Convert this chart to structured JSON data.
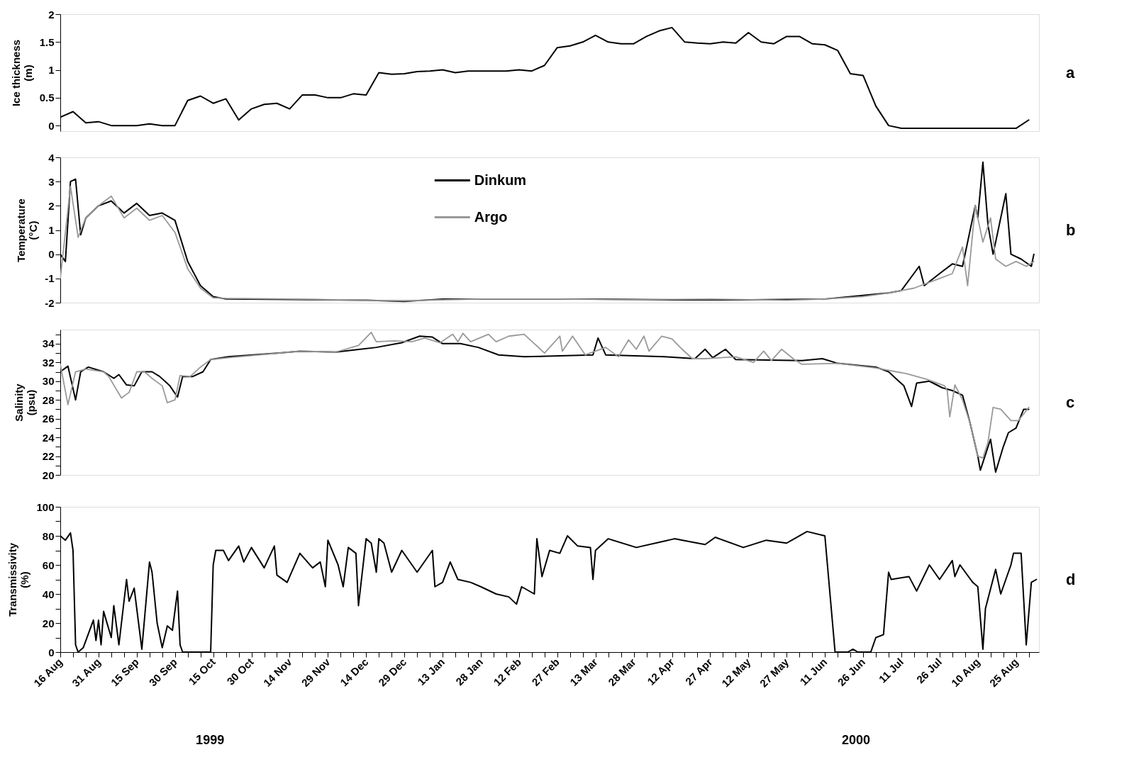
{
  "chart_data": [
    {
      "type": "line",
      "ylabel": "Ice thickness\n(m)",
      "annotations": [
        "a"
      ],
      "tick_labels": "y",
      "grid": false,
      "xlim": [
        "1999-08-16",
        "2000-09-03"
      ],
      "ylim": [
        -0.1,
        2
      ],
      "yticks": [
        0,
        0.5,
        1,
        1.5,
        2
      ],
      "x": [
        "1999-08-16",
        "1999-08-21",
        "1999-08-26",
        "1999-08-31",
        "1999-09-05",
        "1999-09-10",
        "1999-09-15",
        "1999-09-20",
        "1999-09-25",
        "1999-09-30",
        "1999-10-05",
        "1999-10-10",
        "1999-10-15",
        "1999-10-20",
        "1999-10-25",
        "1999-10-30",
        "1999-11-04",
        "1999-11-09",
        "1999-11-14",
        "1999-11-19",
        "1999-11-24",
        "1999-11-29",
        "1999-12-04",
        "1999-12-09",
        "1999-12-14",
        "1999-12-19",
        "1999-12-24",
        "1999-12-29",
        "2000-01-03",
        "2000-01-08",
        "2000-01-13",
        "2000-01-18",
        "2000-01-23",
        "2000-01-28",
        "2000-02-02",
        "2000-02-07",
        "2000-02-12",
        "2000-02-17",
        "2000-02-22",
        "2000-02-27",
        "2000-03-03",
        "2000-03-08",
        "2000-03-13",
        "2000-03-18",
        "2000-03-23",
        "2000-03-28",
        "2000-04-02",
        "2000-04-07",
        "2000-04-12",
        "2000-04-17",
        "2000-04-22",
        "2000-04-27",
        "2000-05-02",
        "2000-05-07",
        "2000-05-12",
        "2000-05-17",
        "2000-05-22",
        "2000-05-27",
        "2000-06-01",
        "2000-06-06",
        "2000-06-11",
        "2000-06-16",
        "2000-06-21",
        "2000-06-26",
        "2000-07-01",
        "2000-07-06",
        "2000-07-11",
        "2000-07-16",
        "2000-07-21",
        "2000-07-26",
        "2000-07-31",
        "2000-08-05",
        "2000-08-10",
        "2000-08-15",
        "2000-08-20",
        "2000-08-25",
        "2000-08-30"
      ],
      "series": [
        {
          "color": "#000000",
          "values": [
            0.15,
            0.25,
            0.05,
            0.07,
            0,
            0,
            0,
            0.03,
            0,
            0,
            0.45,
            0.53,
            0.4,
            0.48,
            0.1,
            0.3,
            0.38,
            0.4,
            0.3,
            0.55,
            0.55,
            0.5,
            0.5,
            0.57,
            0.55,
            0.95,
            0.92,
            0.93,
            0.97,
            0.98,
            1.0,
            0.95,
            0.98,
            0.98,
            0.98,
            0.98,
            1.0,
            0.98,
            1.08,
            1.4,
            1.43,
            1.5,
            1.62,
            1.5,
            1.47,
            1.47,
            1.6,
            1.7,
            1.76,
            1.5,
            1.48,
            1.47,
            1.5,
            1.48,
            1.67,
            1.5,
            1.47,
            1.6,
            1.6,
            1.47,
            1.45,
            1.35,
            0.93,
            0.9,
            0.35,
            0,
            -0.05,
            -0.05,
            -0.05,
            -0.05,
            -0.05,
            -0.05,
            -0.05,
            -0.05,
            -0.05,
            -0.05,
            0.1
          ]
        }
      ]
    },
    {
      "type": "line",
      "ylabel": "Temperature\n(°C)",
      "annotations": [
        "b"
      ],
      "tick_labels": "y",
      "grid": false,
      "legend": "top",
      "xlim": [
        "1999-08-16",
        "2000-09-03"
      ],
      "ylim": [
        -2,
        4
      ],
      "yticks": [
        -2,
        -1,
        0,
        1,
        2,
        3,
        4
      ],
      "series": [
        {
          "name": "Dinkum",
          "color": "#000000",
          "x": [
            "1999-08-16",
            "1999-08-18",
            "1999-08-20",
            "1999-08-22",
            "1999-08-24",
            "1999-08-26",
            "1999-08-31",
            "1999-09-05",
            "1999-09-10",
            "1999-09-15",
            "1999-09-20",
            "1999-09-25",
            "1999-09-30",
            "1999-10-05",
            "1999-10-10",
            "1999-10-15",
            "1999-10-20",
            "1999-11-14",
            "1999-12-14",
            "1999-12-29",
            "2000-01-13",
            "2000-02-12",
            "2000-03-13",
            "2000-04-12",
            "2000-05-12",
            "2000-06-11",
            "2000-06-26",
            "2000-07-06",
            "2000-07-11",
            "2000-07-18",
            "2000-07-20",
            "2000-07-26",
            "2000-07-31",
            "2000-08-04",
            "2000-08-09",
            "2000-08-10",
            "2000-08-12",
            "2000-08-14",
            "2000-08-16",
            "2000-08-21",
            "2000-08-23",
            "2000-08-27",
            "2000-08-31",
            "2000-09-01"
          ],
          "values": [
            0,
            -0.3,
            3.0,
            3.1,
            0.8,
            1.5,
            2.0,
            2.2,
            1.7,
            2.1,
            1.6,
            1.7,
            1.4,
            -0.3,
            -1.3,
            -1.75,
            -1.85,
            -1.87,
            -1.9,
            -1.95,
            -1.85,
            -1.85,
            -1.85,
            -1.88,
            -1.88,
            -1.85,
            -1.7,
            -1.6,
            -1.5,
            -0.5,
            -1.3,
            -0.8,
            -0.4,
            -0.5,
            2.0,
            1.5,
            3.8,
            1.2,
            0.0,
            2.5,
            0.0,
            -0.2,
            -0.5,
            0.0
          ]
        },
        {
          "name": "Argo",
          "color": "#999999",
          "x": [
            "1999-08-16",
            "1999-08-20",
            "1999-08-23",
            "1999-08-26",
            "1999-08-31",
            "1999-09-05",
            "1999-09-10",
            "1999-09-15",
            "1999-09-20",
            "1999-09-25",
            "1999-09-30",
            "1999-10-05",
            "1999-10-10",
            "1999-10-15",
            "1999-10-20",
            "1999-11-14",
            "1999-12-14",
            "1999-12-29",
            "2000-01-28",
            "2000-02-27",
            "2000-03-28",
            "2000-04-27",
            "2000-05-27",
            "2000-06-11",
            "2000-06-26",
            "2000-07-06",
            "2000-07-16",
            "2000-07-26",
            "2000-07-31",
            "2000-08-04",
            "2000-08-06",
            "2000-08-09",
            "2000-08-12",
            "2000-08-15",
            "2000-08-17",
            "2000-08-21",
            "2000-08-25",
            "2000-08-29",
            "2000-09-01"
          ],
          "values": [
            -1.0,
            2.8,
            0.7,
            1.5,
            2.0,
            2.4,
            1.5,
            1.9,
            1.4,
            1.6,
            0.9,
            -0.6,
            -1.4,
            -1.8,
            -1.82,
            -1.85,
            -1.9,
            -1.92,
            -1.85,
            -1.85,
            -1.88,
            -1.85,
            -1.9,
            -1.85,
            -1.75,
            -1.6,
            -1.4,
            -1.0,
            -0.8,
            0.3,
            -1.3,
            2.0,
            0.5,
            1.5,
            -0.2,
            -0.5,
            -0.3,
            -0.5,
            -0.3
          ]
        }
      ]
    },
    {
      "type": "line",
      "ylabel": "Salinity\n(psu)",
      "annotations": [
        "c"
      ],
      "tick_labels": "y",
      "grid": false,
      "xlim": [
        "1999-08-16",
        "2000-09-03"
      ],
      "ylim": [
        20,
        35.5
      ],
      "yticks": [
        20,
        {
          "value": 21,
          "label": null
        },
        22,
        {
          "value": 23,
          "label": null
        },
        24,
        {
          "value": 25,
          "label": null
        },
        26,
        {
          "value": 27,
          "label": null
        },
        28,
        {
          "value": 29,
          "label": null
        },
        30,
        {
          "value": 31,
          "label": null
        },
        32,
        {
          "value": 33,
          "label": null
        },
        34,
        {
          "value": 35,
          "label": null
        }
      ],
      "series": [
        {
          "color": "#000000",
          "x": [
            "1999-08-16",
            "1999-08-19",
            "1999-08-22",
            "1999-08-24",
            "1999-08-27",
            "1999-09-02",
            "1999-09-06",
            "1999-09-08",
            "1999-09-11",
            "1999-09-14",
            "1999-09-17",
            "1999-09-21",
            "1999-09-24",
            "1999-09-28",
            "1999-10-01",
            "1999-10-03",
            "1999-10-07",
            "1999-10-11",
            "1999-10-14",
            "1999-10-21",
            "1999-11-10",
            "1999-11-18",
            "1999-12-02",
            "1999-12-18",
            "1999-12-28",
            "2000-01-04",
            "2000-01-09",
            "2000-01-13",
            "2000-01-20",
            "2000-01-27",
            "2000-02-04",
            "2000-02-14",
            "2000-03-12",
            "2000-03-14",
            "2000-03-17",
            "2000-04-09",
            "2000-04-21",
            "2000-04-25",
            "2000-04-28",
            "2000-05-03",
            "2000-05-07",
            "2000-06-02",
            "2000-06-10",
            "2000-06-16",
            "2000-07-01",
            "2000-07-06",
            "2000-07-12",
            "2000-07-15",
            "2000-07-17",
            "2000-07-22",
            "2000-07-27",
            "2000-07-31",
            "2000-08-04",
            "2000-08-07",
            "2000-08-10",
            "2000-08-11",
            "2000-08-14",
            "2000-08-15",
            "2000-08-17",
            "2000-08-20",
            "2000-08-22",
            "2000-08-25",
            "2000-08-28",
            "2000-08-30"
          ],
          "values": [
            31.0,
            31.6,
            28.0,
            31.0,
            31.5,
            31.0,
            30.3,
            30.7,
            29.6,
            29.5,
            31.0,
            31.0,
            30.5,
            29.5,
            28.3,
            30.5,
            30.5,
            31.0,
            32.3,
            32.6,
            33.0,
            33.2,
            33.1,
            33.6,
            34.1,
            34.8,
            34.7,
            34.0,
            34.0,
            33.6,
            32.8,
            32.6,
            32.8,
            34.6,
            32.8,
            32.6,
            32.4,
            33.4,
            32.5,
            33.4,
            32.3,
            32.2,
            32.4,
            31.9,
            31.5,
            31.0,
            29.5,
            27.3,
            29.8,
            30.0,
            29.3,
            29.0,
            28.5,
            25.5,
            22.0,
            20.5,
            23.0,
            23.8,
            20.3,
            23.0,
            24.5,
            25.0,
            27.0,
            27.0
          ]
        },
        {
          "color": "#999999",
          "x": [
            "1999-08-16",
            "1999-08-19",
            "1999-08-22",
            "1999-08-26",
            "1999-09-02",
            "1999-09-04",
            "1999-09-09",
            "1999-09-12",
            "1999-09-15",
            "1999-09-18",
            "1999-09-21",
            "1999-09-25",
            "1999-09-27",
            "1999-09-30",
            "1999-10-02",
            "1999-10-06",
            "1999-10-10",
            "1999-10-14",
            "1999-10-21",
            "1999-11-10",
            "1999-11-18",
            "1999-12-02",
            "1999-12-11",
            "1999-12-16",
            "1999-12-18",
            "1999-12-25",
            "2000-01-01",
            "2000-01-06",
            "2000-01-12",
            "2000-01-17",
            "2000-01-19",
            "2000-01-21",
            "2000-01-24",
            "2000-01-31",
            "2000-02-03",
            "2000-02-08",
            "2000-02-14",
            "2000-02-18",
            "2000-02-22",
            "2000-02-28",
            "2000-02-29",
            "2000-03-04",
            "2000-03-09",
            "2000-03-17",
            "2000-03-22",
            "2000-03-26",
            "2000-03-29",
            "2000-04-01",
            "2000-04-03",
            "2000-04-08",
            "2000-04-12",
            "2000-04-16",
            "2000-04-20",
            "2000-04-25",
            "2000-05-07",
            "2000-05-14",
            "2000-05-18",
            "2000-05-21",
            "2000-05-25",
            "2000-05-30",
            "2000-06-02",
            "2000-06-16",
            "2000-07-01",
            "2000-07-13",
            "2000-07-21",
            "2000-07-28",
            "2000-07-29",
            "2000-07-30",
            "2000-08-01",
            "2000-08-04",
            "2000-08-07",
            "2000-08-10",
            "2000-08-12",
            "2000-08-14",
            "2000-08-16",
            "2000-08-19",
            "2000-08-23",
            "2000-08-26",
            "2000-08-30"
          ],
          "values": [
            31.8,
            27.5,
            31.0,
            31.3,
            31.0,
            30.5,
            28.2,
            28.8,
            31.0,
            31.0,
            30.3,
            29.5,
            27.7,
            28.0,
            30.6,
            30.5,
            31.5,
            32.3,
            32.5,
            33.0,
            33.2,
            33.1,
            33.8,
            35.2,
            34.2,
            34.3,
            34.2,
            34.6,
            34.1,
            35.0,
            34.2,
            35.1,
            34.2,
            35.0,
            34.2,
            34.8,
            35.0,
            34.0,
            33.0,
            34.8,
            33.2,
            34.8,
            32.8,
            33.6,
            32.6,
            34.4,
            33.4,
            34.8,
            33.2,
            34.8,
            34.5,
            33.4,
            32.4,
            32.4,
            32.6,
            32.0,
            33.2,
            32.2,
            33.4,
            32.3,
            31.8,
            31.9,
            31.4,
            30.8,
            30.2,
            29.5,
            29.0,
            26.2,
            29.6,
            28.0,
            25.5,
            22.0,
            21.8,
            23.5,
            27.2,
            27.0,
            25.8,
            25.8,
            27.2
          ]
        }
      ]
    },
    {
      "type": "line",
      "ylabel": "Transmissivity\n(%)",
      "grid": false,
      "annotations": [
        "d",
        "1999",
        "2000"
      ],
      "xlim": [
        "1999-08-16",
        "2000-09-03"
      ],
      "ylim": [
        0,
        100
      ],
      "yticks": [
        0,
        {
          "value": 10,
          "label": null
        },
        20,
        {
          "value": 30,
          "label": null
        },
        40,
        {
          "value": 50,
          "label": null
        },
        60,
        {
          "value": 70,
          "label": null
        },
        80,
        {
          "value": 90,
          "label": null
        },
        100
      ],
      "xticks": [
        {
          "value": "1999-08-16",
          "label": "16 Aug"
        },
        {
          "value": "1999-08-21",
          "label": null
        },
        {
          "value": "1999-08-26",
          "label": null
        },
        {
          "value": "1999-08-31",
          "label": "31 Aug"
        },
        {
          "value": "1999-09-05",
          "label": null
        },
        {
          "value": "1999-09-10",
          "label": null
        },
        {
          "value": "1999-09-15",
          "label": "15 Sep"
        },
        {
          "value": "1999-09-20",
          "label": null
        },
        {
          "value": "1999-09-25",
          "label": null
        },
        {
          "value": "1999-09-30",
          "label": "30 Sep"
        },
        {
          "value": "1999-10-05",
          "label": null
        },
        {
          "value": "1999-10-10",
          "label": null
        },
        {
          "value": "1999-10-15",
          "label": "15 Oct"
        },
        {
          "value": "1999-10-20",
          "label": null
        },
        {
          "value": "1999-10-25",
          "label": null
        },
        {
          "value": "1999-10-30",
          "label": "30 Oct"
        },
        {
          "value": "1999-11-04",
          "label": null
        },
        {
          "value": "1999-11-09",
          "label": null
        },
        {
          "value": "1999-11-14",
          "label": "14 Nov"
        },
        {
          "value": "1999-11-19",
          "label": null
        },
        {
          "value": "1999-11-24",
          "label": null
        },
        {
          "value": "1999-11-29",
          "label": "29 Nov"
        },
        {
          "value": "1999-12-04",
          "label": null
        },
        {
          "value": "1999-12-09",
          "label": null
        },
        {
          "value": "1999-12-14",
          "label": "14 Dec"
        },
        {
          "value": "1999-12-19",
          "label": null
        },
        {
          "value": "1999-12-24",
          "label": null
        },
        {
          "value": "1999-12-29",
          "label": "29 Dec"
        },
        {
          "value": "2000-01-03",
          "label": null
        },
        {
          "value": "2000-01-08",
          "label": null
        },
        {
          "value": "2000-01-13",
          "label": "13 Jan"
        },
        {
          "value": "2000-01-18",
          "label": null
        },
        {
          "value": "2000-01-23",
          "label": null
        },
        {
          "value": "2000-01-28",
          "label": "28 Jan"
        },
        {
          "value": "2000-02-02",
          "label": null
        },
        {
          "value": "2000-02-07",
          "label": null
        },
        {
          "value": "2000-02-12",
          "label": "12 Feb"
        },
        {
          "value": "2000-02-17",
          "label": null
        },
        {
          "value": "2000-02-22",
          "label": null
        },
        {
          "value": "2000-02-27",
          "label": "27 Feb"
        },
        {
          "value": "2000-03-03",
          "label": null
        },
        {
          "value": "2000-03-08",
          "label": null
        },
        {
          "value": "2000-03-13",
          "label": "13 Mar"
        },
        {
          "value": "2000-03-18",
          "label": null
        },
        {
          "value": "2000-03-23",
          "label": null
        },
        {
          "value": "2000-03-28",
          "label": "28 Mar"
        },
        {
          "value": "2000-04-02",
          "label": null
        },
        {
          "value": "2000-04-07",
          "label": null
        },
        {
          "value": "2000-04-12",
          "label": "12 Apr"
        },
        {
          "value": "2000-04-17",
          "label": null
        },
        {
          "value": "2000-04-22",
          "label": null
        },
        {
          "value": "2000-04-27",
          "label": "27 Apr"
        },
        {
          "value": "2000-05-02",
          "label": null
        },
        {
          "value": "2000-05-07",
          "label": null
        },
        {
          "value": "2000-05-12",
          "label": "12 May"
        },
        {
          "value": "2000-05-17",
          "label": null
        },
        {
          "value": "2000-05-22",
          "label": null
        },
        {
          "value": "2000-05-27",
          "label": "27 May"
        },
        {
          "value": "2000-06-01",
          "label": null
        },
        {
          "value": "2000-06-06",
          "label": null
        },
        {
          "value": "2000-06-11",
          "label": "11 Jun"
        },
        {
          "value": "2000-06-16",
          "label": null
        },
        {
          "value": "2000-06-21",
          "label": null
        },
        {
          "value": "2000-06-26",
          "label": "26 Jun"
        },
        {
          "value": "2000-07-01",
          "label": null
        },
        {
          "value": "2000-07-06",
          "label": null
        },
        {
          "value": "2000-07-11",
          "label": "11 Jul"
        },
        {
          "value": "2000-07-16",
          "label": null
        },
        {
          "value": "2000-07-21",
          "label": null
        },
        {
          "value": "2000-07-26",
          "label": "26 Jul"
        },
        {
          "value": "2000-07-31",
          "label": null
        },
        {
          "value": "2000-08-05",
          "label": null
        },
        {
          "value": "2000-08-10",
          "label": "10 Aug"
        },
        {
          "value": "2000-08-15",
          "label": null
        },
        {
          "value": "2000-08-20",
          "label": null
        },
        {
          "value": "2000-08-25",
          "label": "25 Aug"
        },
        {
          "value": "2000-08-30",
          "label": null
        }
      ],
      "x": [
        "1999-08-16",
        "1999-08-18",
        "1999-08-20",
        "1999-08-21",
        "1999-08-22",
        "1999-08-23",
        "1999-08-25",
        "1999-08-29",
        "1999-08-30",
        "1999-08-31",
        "1999-09-01",
        "1999-09-02",
        "1999-09-05",
        "1999-09-06",
        "1999-09-08",
        "1999-09-11",
        "1999-09-12",
        "1999-09-14",
        "1999-09-17",
        "1999-09-20",
        "1999-09-21",
        "1999-09-23",
        "1999-09-25",
        "1999-09-27",
        "1999-09-29",
        "1999-10-01",
        "1999-10-02",
        "1999-10-03",
        "1999-10-14",
        "1999-10-15",
        "1999-10-16",
        "1999-10-19",
        "1999-10-21",
        "1999-10-25",
        "1999-10-27",
        "1999-10-30",
        "1999-11-04",
        "1999-11-08",
        "1999-11-09",
        "1999-11-13",
        "1999-11-18",
        "1999-11-23",
        "1999-11-26",
        "1999-11-28",
        "1999-11-29",
        "1999-12-03",
        "1999-12-05",
        "1999-12-07",
        "1999-12-10",
        "1999-12-11",
        "1999-12-14",
        "1999-12-16",
        "1999-12-18",
        "1999-12-19",
        "1999-12-21",
        "1999-12-24",
        "1999-12-28",
        "2000-01-03",
        "2000-01-09",
        "2000-01-10",
        "2000-01-13",
        "2000-01-16",
        "2000-01-19",
        "2000-01-24",
        "2000-01-28",
        "2000-02-03",
        "2000-02-08",
        "2000-02-11",
        "2000-02-13",
        "2000-02-18",
        "2000-02-19",
        "2000-02-21",
        "2000-02-24",
        "2000-02-28",
        "2000-03-02",
        "2000-03-06",
        "2000-03-11",
        "2000-03-12",
        "2000-03-13",
        "2000-03-18",
        "2000-03-29",
        "2000-04-08",
        "2000-04-13",
        "2000-04-25",
        "2000-04-29",
        "2000-05-10",
        "2000-05-19",
        "2000-05-27",
        "2000-06-04",
        "2000-06-11",
        "2000-06-13",
        "2000-06-15",
        "2000-06-20",
        "2000-06-22",
        "2000-06-24",
        "2000-06-29",
        "2000-07-01",
        "2000-07-04",
        "2000-07-06",
        "2000-07-07",
        "2000-07-14",
        "2000-07-17",
        "2000-07-22",
        "2000-07-26",
        "2000-07-31",
        "2000-08-01",
        "2000-08-03",
        "2000-08-08",
        "2000-08-10",
        "2000-08-12",
        "2000-08-13",
        "2000-08-17",
        "2000-08-19",
        "2000-08-23",
        "2000-08-24",
        "2000-08-27",
        "2000-08-29",
        "2000-08-31",
        "2000-09-02"
      ],
      "series": [
        {
          "color": "#000000",
          "values": [
            80,
            77,
            82,
            70,
            5,
            0,
            3,
            22,
            8,
            22,
            5,
            28,
            10,
            32,
            5,
            50,
            35,
            44,
            2,
            62,
            55,
            20,
            3,
            18,
            15,
            42,
            5,
            0,
            0,
            60,
            70,
            70,
            63,
            73,
            62,
            72,
            58,
            73,
            53,
            48,
            68,
            58,
            62,
            45,
            77,
            60,
            45,
            72,
            68,
            32,
            78,
            75,
            55,
            78,
            75,
            55,
            70,
            55,
            70,
            45,
            48,
            62,
            50,
            48,
            45,
            40,
            38,
            33,
            45,
            40,
            78,
            52,
            70,
            68,
            80,
            73,
            72,
            50,
            70,
            78,
            72,
            76,
            78,
            74,
            79,
            72,
            77,
            75,
            83,
            80,
            40,
            0,
            0,
            2,
            0,
            0,
            10,
            12,
            55,
            50,
            52,
            42,
            60,
            50,
            63,
            52,
            60,
            48,
            45,
            2,
            30,
            57,
            40,
            60,
            68,
            68,
            5,
            48,
            50
          ]
        }
      ]
    }
  ]
}
